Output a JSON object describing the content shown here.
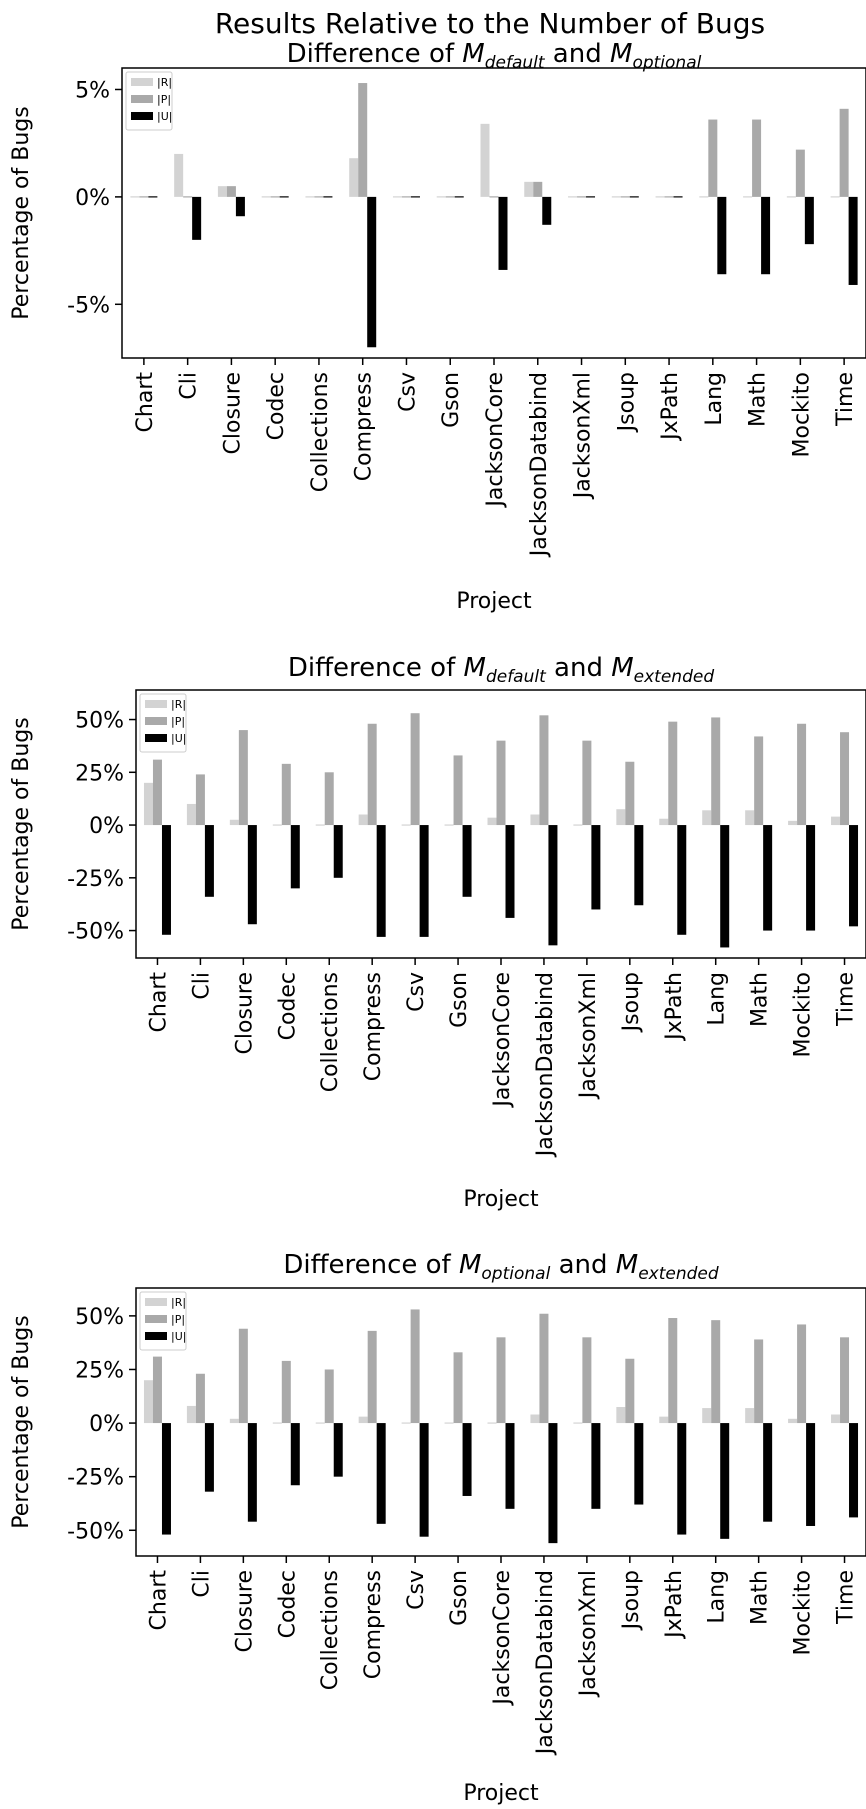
{
  "figure": {
    "suptitle": "Results Relative to the Number of Bugs"
  },
  "chart_data": [
    {
      "type": "bar",
      "title": {
        "prefix": "Difference of ",
        "a": "M",
        "a_sub": "default",
        "mid": " and ",
        "b": "M",
        "b_sub": "optional"
      },
      "xlabel": "Project",
      "ylabel": "Percentage of Bugs",
      "categories": [
        "Chart",
        "Cli",
        "Closure",
        "Codec",
        "Collections",
        "Compress",
        "Csv",
        "Gson",
        "JacksonCore",
        "JacksonDatabind",
        "JacksonXml",
        "Jsoup",
        "JxPath",
        "Lang",
        "Math",
        "Mockito",
        "Time"
      ],
      "ylim": [
        -7.5,
        6.0
      ],
      "yticks": [
        5,
        0,
        -5
      ],
      "ytick_labels": [
        "5%",
        "0%",
        "-5%"
      ],
      "grid": false,
      "legend_position": "top-left",
      "series": [
        {
          "name": "|R|",
          "color": "#d3d3d3",
          "values": [
            0,
            2.0,
            0.5,
            0,
            0,
            1.8,
            0,
            0,
            3.4,
            0.7,
            0,
            0,
            0,
            0,
            0,
            0,
            0
          ]
        },
        {
          "name": "|P|",
          "color": "#a9a9a9",
          "values": [
            0,
            0,
            0.5,
            0,
            0,
            5.3,
            0,
            0,
            0,
            0.7,
            0,
            0,
            0,
            3.6,
            3.6,
            2.2,
            4.1
          ]
        },
        {
          "name": "|U|",
          "color": "#000000",
          "values": [
            0,
            -2.0,
            -0.9,
            0,
            0,
            -7.0,
            0,
            0,
            -3.4,
            -1.3,
            0,
            0,
            0,
            -3.6,
            -3.6,
            -2.2,
            -4.1
          ]
        }
      ]
    },
    {
      "type": "bar",
      "title": {
        "prefix": "Difference of ",
        "a": "M",
        "a_sub": "default",
        "mid": " and ",
        "b": "M",
        "b_sub": "extended"
      },
      "xlabel": "Project",
      "ylabel": "Percentage of Bugs",
      "categories": [
        "Chart",
        "Cli",
        "Closure",
        "Codec",
        "Collections",
        "Compress",
        "Csv",
        "Gson",
        "JacksonCore",
        "JacksonDatabind",
        "JacksonXml",
        "Jsoup",
        "JxPath",
        "Lang",
        "Math",
        "Mockito",
        "Time"
      ],
      "ylim": [
        -63,
        64
      ],
      "yticks": [
        50,
        25,
        0,
        -25,
        -50
      ],
      "ytick_labels": [
        "50%",
        "25%",
        "0%",
        "-25%",
        "-50%"
      ],
      "grid": false,
      "legend_position": "top-left",
      "series": [
        {
          "name": "|R|",
          "color": "#d3d3d3",
          "values": [
            20,
            10,
            2.5,
            0,
            0,
            5,
            0,
            0,
            3.5,
            5,
            0,
            7.5,
            3,
            7,
            7,
            2,
            4
          ]
        },
        {
          "name": "|P|",
          "color": "#a9a9a9",
          "values": [
            31,
            24,
            45,
            29,
            25,
            48,
            53,
            33,
            40,
            52,
            40,
            30,
            49,
            51,
            42,
            48,
            44
          ]
        },
        {
          "name": "|U|",
          "color": "#000000",
          "values": [
            -52,
            -34,
            -47,
            -30,
            -25,
            -53,
            -53,
            -34,
            -44,
            -57,
            -40,
            -38,
            -52,
            -58,
            -50,
            -50,
            -48
          ]
        }
      ]
    },
    {
      "type": "bar",
      "title": {
        "prefix": "Difference of ",
        "a": "M",
        "a_sub": "optional",
        "mid": " and ",
        "b": "M",
        "b_sub": "extended"
      },
      "xlabel": "Project",
      "ylabel": "Percentage of Bugs",
      "categories": [
        "Chart",
        "Cli",
        "Closure",
        "Codec",
        "Collections",
        "Compress",
        "Csv",
        "Gson",
        "JacksonCore",
        "JacksonDatabind",
        "JacksonXml",
        "Jsoup",
        "JxPath",
        "Lang",
        "Math",
        "Mockito",
        "Time"
      ],
      "ylim": [
        -62,
        63
      ],
      "yticks": [
        50,
        25,
        0,
        -25,
        -50
      ],
      "ytick_labels": [
        "50%",
        "25%",
        "0%",
        "-25%",
        "-50%"
      ],
      "grid": false,
      "legend_position": "top-left",
      "series": [
        {
          "name": "|R|",
          "color": "#d3d3d3",
          "values": [
            20,
            8,
            2,
            0,
            0,
            3,
            0,
            0,
            0,
            4,
            0,
            7.5,
            3,
            7,
            7,
            2,
            4
          ]
        },
        {
          "name": "|P|",
          "color": "#a9a9a9",
          "values": [
            31,
            23,
            44,
            29,
            25,
            43,
            53,
            33,
            40,
            51,
            40,
            30,
            49,
            48,
            39,
            46,
            40
          ]
        },
        {
          "name": "|U|",
          "color": "#000000",
          "values": [
            -52,
            -32,
            -46,
            -29,
            -25,
            -47,
            -53,
            -34,
            -40,
            -56,
            -40,
            -38,
            -52,
            -54,
            -46,
            -48,
            -44
          ]
        }
      ]
    }
  ]
}
